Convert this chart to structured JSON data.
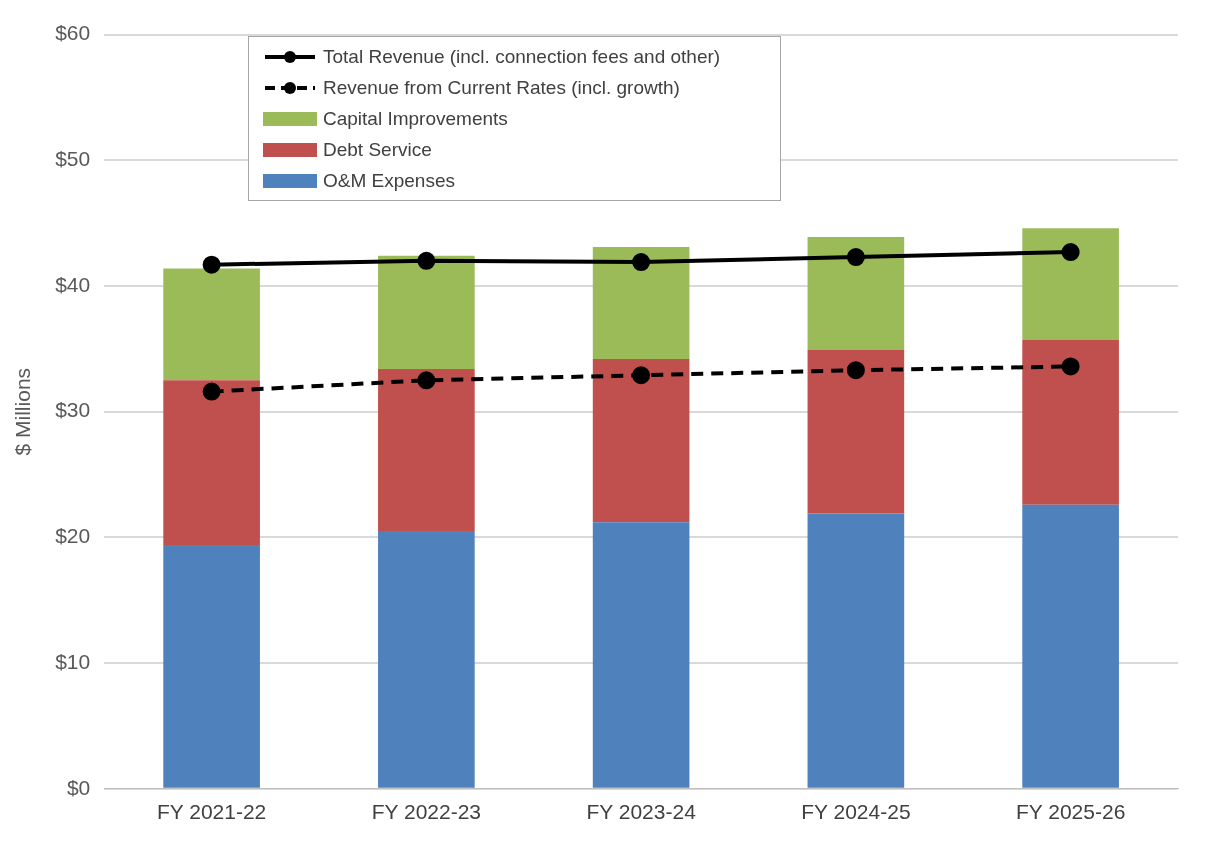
{
  "chart_data": {
    "type": "bar",
    "stacked": true,
    "ylabel": "$ Millions",
    "categories": [
      "FY 2021-22",
      "FY 2022-23",
      "FY 2023-24",
      "FY 2024-25",
      "FY 2025-26"
    ],
    "series": [
      {
        "name": "O&M Expenses",
        "color": "#4f81bd",
        "values": [
          19.4,
          20.5,
          21.2,
          21.9,
          22.6
        ]
      },
      {
        "name": "Debt Service",
        "color": "#c0504d",
        "values": [
          13.1,
          12.9,
          13.0,
          13.0,
          13.1
        ]
      },
      {
        "name": "Capital Improvements",
        "color": "#9bbb59",
        "values": [
          8.9,
          9.0,
          8.9,
          9.0,
          8.9
        ]
      },
      {
        "name": "Revenue from Current Rates (incl. growth)",
        "type": "line",
        "color": "#000000",
        "line_style": "dashed",
        "marker": "circle",
        "values": [
          31.6,
          32.5,
          32.9,
          33.3,
          33.6
        ]
      },
      {
        "name": "Total Revenue (incl. connection fees and other)",
        "type": "line",
        "color": "#000000",
        "line_style": "solid",
        "marker": "circle",
        "values": [
          41.7,
          42.0,
          41.9,
          42.3,
          42.7
        ]
      }
    ],
    "ylim": [
      0,
      60
    ],
    "yticks": [
      {
        "value": 0,
        "label": "$0"
      },
      {
        "value": 10,
        "label": "$10"
      },
      {
        "value": 20,
        "label": "$20"
      },
      {
        "value": 30,
        "label": "$30"
      },
      {
        "value": 40,
        "label": "$40"
      },
      {
        "value": 50,
        "label": "$50"
      },
      {
        "value": 60,
        "label": "$60"
      }
    ],
    "grid": "y",
    "legend": "top"
  }
}
